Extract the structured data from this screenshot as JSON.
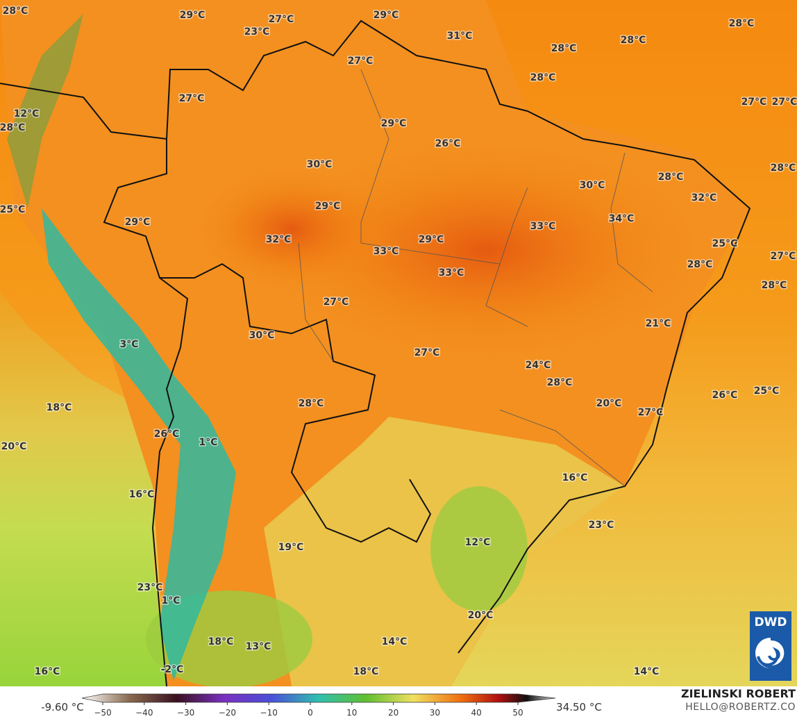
{
  "map": {
    "labels": [
      "28°C",
      "29°C",
      "27°C",
      "23°C",
      "29°C",
      "31°C",
      "28°C",
      "28°C",
      "28°C",
      "27°C",
      "28°C",
      "27°C",
      "12°C",
      "28°C",
      "29°C",
      "26°C",
      "27°C",
      "27°C",
      "30°C",
      "28°C",
      "30°C",
      "28°C",
      "29°C",
      "32°C",
      "25°C",
      "29°C",
      "33°C",
      "34°C",
      "32°C",
      "29°C",
      "25°C",
      "33°C",
      "27°C",
      "28°C",
      "33°C",
      "28°C",
      "27°C",
      "21°C",
      "30°C",
      "3°C",
      "27°C",
      "24°C",
      "28°C",
      "25°C",
      "26°C",
      "18°C",
      "20°C",
      "28°C",
      "27°C",
      "26°C",
      "1°C",
      "20°C",
      "16°C",
      "16°C",
      "23°C",
      "12°C",
      "19°C",
      "23°C",
      "1°C",
      "20°C",
      "18°C",
      "13°C",
      "14°C",
      "16°C",
      "-2°C",
      "18°C",
      "14°C"
    ]
  },
  "colorbar": {
    "min_label": "-9.60 °C",
    "max_label": "34.50 °C",
    "ticks": [
      {
        "value": -50,
        "label": "−50"
      },
      {
        "value": -40,
        "label": "−40"
      },
      {
        "value": -30,
        "label": "−30"
      },
      {
        "value": -20,
        "label": "−20"
      },
      {
        "value": -10,
        "label": "−10"
      },
      0,
      10,
      20,
      30,
      40,
      50
    ]
  },
  "credit": {
    "name": "ZIELINSKI ROBERT",
    "contact": "HELLO@ROBERTZ.CO",
    "logo": "DWD"
  }
}
